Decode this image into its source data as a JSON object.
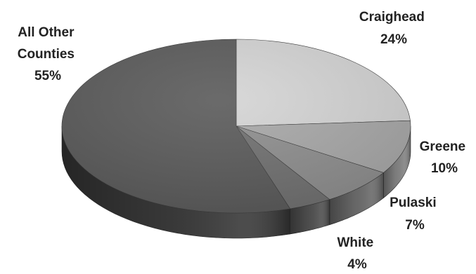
{
  "chart_data": {
    "type": "pie",
    "style": "3d",
    "start_angle_deg": 0,
    "direction": "clockwise",
    "slices": [
      {
        "label_line1": "Craighead",
        "label_line2": "24%",
        "value": 24,
        "color": "#d4d4d4",
        "side_color": "#a9a9a9"
      },
      {
        "label_line1": "Greene",
        "label_line2": "10%",
        "value": 10,
        "color": "#a8a8a8",
        "side_color": "#838383"
      },
      {
        "label_line1": "Pulaski",
        "label_line2": "7%",
        "value": 7,
        "color": "#8e8e8e",
        "side_color": "#6b6b6b"
      },
      {
        "label_line1": "White",
        "label_line2": "4%",
        "value": 4,
        "color": "#707070",
        "side_color": "#505050"
      },
      {
        "label_line1": "All Other",
        "label_line2": "Counties",
        "label_line3": "55%",
        "value": 55,
        "color": "#5a5a5a",
        "side_color": "#3a3a3a"
      }
    ]
  }
}
